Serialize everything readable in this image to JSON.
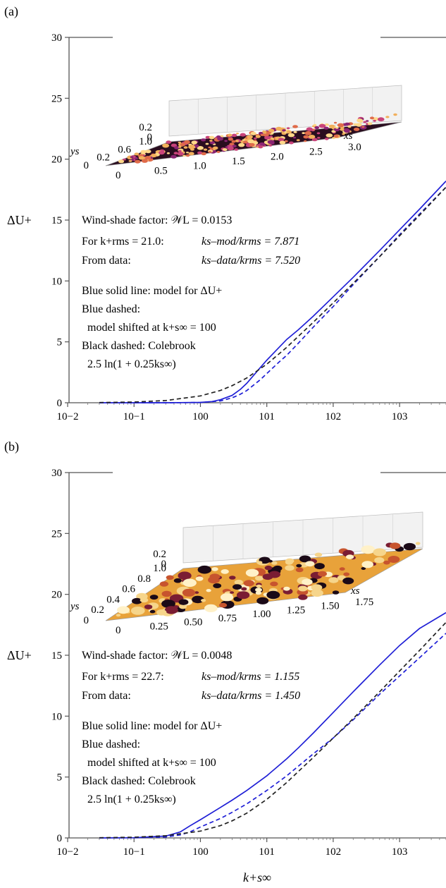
{
  "chart_data": [
    {
      "type": "line",
      "panel_label": "(a)",
      "ylabel": "ΔU+",
      "xscale": "log",
      "xlim": [
        0.03,
        5000
      ],
      "ylim": [
        0,
        30
      ],
      "x_tick_labels": [
        "10−2",
        "10−1",
        "100",
        "101",
        "102",
        "103"
      ],
      "y_tick_labels": [
        "0",
        "5",
        "10",
        "15",
        "20",
        "25",
        "30"
      ],
      "inset": {
        "type": "surface",
        "colormap": "inferno",
        "x_axis_label": "xs",
        "y_axis_label": "ys",
        "x_ticks": [
          "0",
          "0.5",
          "1.0",
          "1.5",
          "2.0",
          "2.5",
          "3.0"
        ],
        "y_ticks": [
          "0",
          "0.2",
          "0.6",
          "1.0"
        ],
        "z_ticks": [
          "0",
          "0.2"
        ]
      },
      "annotations": {
        "wind_shade": "Wind-shade factor:  𝒲L = 0.0153",
        "for_krms_label": "For k+rms = 21.0:",
        "for_krms_value": "ks–mod/krms = 7.871",
        "from_data_label": "From data:",
        "from_data_value": "ks–data/krms = 7.520",
        "legend_1": "Blue solid line: model for ΔU+",
        "legend_2": "Blue dashed:",
        "legend_3": "model shifted at k+s∞ = 100",
        "legend_4": "Black dashed: Colebrook",
        "legend_5": "2.5 ln(1 + 0.25ks∞)"
      },
      "series": [
        {
          "style": "solid",
          "color": "#1f1fd6",
          "x": [
            0.03,
            0.3,
            1,
            1.5,
            2,
            3,
            4,
            5,
            6,
            8,
            10,
            15,
            20,
            30,
            50,
            100,
            200,
            500,
            1000,
            2000,
            5000
          ],
          "y": [
            0,
            0,
            0.03,
            0.1,
            0.25,
            0.6,
            1.1,
            1.6,
            2.1,
            2.9,
            3.5,
            4.5,
            5.2,
            6.0,
            7.1,
            8.7,
            10.3,
            12.5,
            14.2,
            15.9,
            18.2
          ]
        },
        {
          "style": "dashed",
          "color": "#1f1fd6",
          "x": [
            0.03,
            0.3,
            1,
            2,
            3,
            4,
            5,
            6,
            8,
            10,
            15,
            20,
            30,
            50,
            100,
            200,
            500,
            1000,
            2000,
            5000
          ],
          "y": [
            0,
            0,
            0.02,
            0.15,
            0.4,
            0.7,
            1.0,
            1.35,
            1.9,
            2.4,
            3.3,
            3.9,
            4.9,
            6.2,
            7.9,
            9.7,
            12.0,
            13.8,
            15.5,
            17.7
          ]
        },
        {
          "style": "dashed",
          "color": "#222222",
          "x": [
            0.03,
            0.1,
            0.3,
            1,
            2,
            3,
            5,
            10,
            20,
            30,
            50,
            100,
            200,
            500,
            1000,
            2000,
            5000
          ],
          "y": [
            0.02,
            0.06,
            0.18,
            0.56,
            1.01,
            1.4,
            2.03,
            3.17,
            4.55,
            5.46,
            6.6,
            8.2,
            9.8,
            12.0,
            13.7,
            15.4,
            17.7
          ]
        }
      ]
    },
    {
      "type": "line",
      "panel_label": "(b)",
      "ylabel": "ΔU+",
      "xlabel": "k+s∞",
      "xscale": "log",
      "xlim": [
        0.03,
        5000
      ],
      "ylim": [
        0,
        30
      ],
      "x_tick_labels": [
        "10−2",
        "10−1",
        "100",
        "101",
        "102",
        "103"
      ],
      "y_tick_labels": [
        "0",
        "5",
        "10",
        "15",
        "20",
        "25",
        "30"
      ],
      "inset": {
        "type": "surface",
        "colormap": "inferno",
        "x_axis_label": "xs",
        "y_axis_label": "ys",
        "x_ticks": [
          "0",
          "0.25",
          "0.50",
          "0.75",
          "1.00",
          "1.25",
          "1.50",
          "1.75"
        ],
        "y_ticks": [
          "0",
          "0.2",
          "0.4",
          "0.6",
          "0.8",
          "1.0"
        ],
        "z_ticks": [
          "0",
          "0.2"
        ]
      },
      "annotations": {
        "wind_shade": "Wind-shade factor:  𝒲L = 0.0048",
        "for_krms_label": "For k+rms = 22.7:",
        "for_krms_value": "ks–mod/krms = 1.155",
        "from_data_label": "From data:",
        "from_data_value": "ks–data/krms = 1.450",
        "legend_1": "Blue solid line: model for ΔU+",
        "legend_2": "Blue dashed:",
        "legend_3": "model shifted at k+s∞ = 100",
        "legend_4": "Black dashed: Colebrook",
        "legend_5": "2.5 ln(1 + 0.25ks∞)"
      },
      "series": [
        {
          "style": "solid",
          "color": "#1f1fd6",
          "x": [
            0.03,
            0.1,
            0.3,
            0.5,
            0.7,
            1,
            2,
            3,
            5,
            10,
            20,
            30,
            50,
            100,
            200,
            500,
            1000,
            2000,
            5000
          ],
          "y": [
            0,
            0.02,
            0.15,
            0.5,
            1.0,
            1.5,
            2.5,
            3.1,
            3.9,
            5.1,
            6.5,
            7.4,
            8.6,
            10.3,
            12.0,
            14.2,
            15.8,
            17.2,
            18.5
          ]
        },
        {
          "style": "dashed",
          "color": "#1f1fd6",
          "x": [
            0.03,
            0.1,
            0.3,
            0.5,
            0.7,
            1,
            2,
            3,
            5,
            10,
            20,
            30,
            50,
            100,
            200,
            500,
            1000,
            2000,
            5000
          ],
          "y": [
            0,
            0.01,
            0.08,
            0.25,
            0.5,
            0.9,
            1.6,
            2.1,
            2.8,
            3.9,
            5.1,
            5.9,
            6.9,
            8.2,
            9.7,
            11.8,
            13.3,
            14.8,
            16.8
          ]
        },
        {
          "style": "dashed",
          "color": "#222222",
          "x": [
            0.03,
            0.1,
            0.3,
            1,
            2,
            3,
            5,
            10,
            20,
            30,
            50,
            100,
            200,
            500,
            1000,
            2000,
            5000
          ],
          "y": [
            0.02,
            0.06,
            0.18,
            0.56,
            1.01,
            1.4,
            2.03,
            3.17,
            4.55,
            5.46,
            6.6,
            8.2,
            9.8,
            12.0,
            13.7,
            15.4,
            17.7
          ]
        }
      ]
    }
  ]
}
